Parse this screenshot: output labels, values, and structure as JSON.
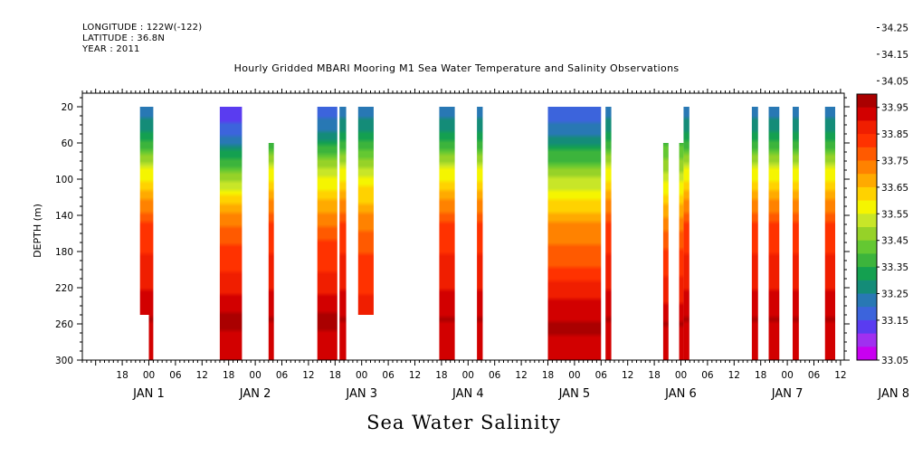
{
  "header": {
    "longitude": "LONGITUDE : 122W(-122)",
    "latitude": "LATITUDE : 36.8N",
    "year": "YEAR : 2011"
  },
  "chart_data": {
    "type": "heatmap",
    "title": "Hourly Gridded MBARI Mooring M1 Sea Water Temperature and Salinity Observations",
    "main_label": "Sea Water Salinity",
    "ylabel": "DEPTH (m)",
    "xlabel": "",
    "ylim": [
      300,
      0
    ],
    "y_ticks": [
      20,
      60,
      100,
      140,
      180,
      220,
      260,
      300
    ],
    "x_hour_ticks": [
      {
        "hour": 18,
        "label": "18"
      },
      {
        "hour": 24,
        "label": "00"
      },
      {
        "hour": 30,
        "label": "06"
      },
      {
        "hour": 36,
        "label": "12"
      },
      {
        "hour": 42,
        "label": "18"
      },
      {
        "hour": 48,
        "label": "00"
      },
      {
        "hour": 54,
        "label": "06"
      },
      {
        "hour": 60,
        "label": "12"
      },
      {
        "hour": 66,
        "label": "18"
      },
      {
        "hour": 72,
        "label": "00"
      },
      {
        "hour": 78,
        "label": "06"
      },
      {
        "hour": 84,
        "label": "12"
      },
      {
        "hour": 90,
        "label": "18"
      },
      {
        "hour": 96,
        "label": "00"
      },
      {
        "hour": 102,
        "label": "06"
      },
      {
        "hour": 108,
        "label": "12"
      },
      {
        "hour": 114,
        "label": "18"
      },
      {
        "hour": 120,
        "label": "00"
      },
      {
        "hour": 126,
        "label": "06"
      },
      {
        "hour": 132,
        "label": "12"
      },
      {
        "hour": 138,
        "label": "18"
      },
      {
        "hour": 144,
        "label": "00"
      },
      {
        "hour": 150,
        "label": "06"
      },
      {
        "hour": 156,
        "label": "12"
      },
      {
        "hour": 162,
        "label": "18"
      },
      {
        "hour": 168,
        "label": "00"
      },
      {
        "hour": 174,
        "label": "06"
      },
      {
        "hour": 180,
        "label": "12"
      }
    ],
    "x_date_labels": [
      {
        "hour": 24,
        "label": "JAN   1"
      },
      {
        "hour": 48,
        "label": "JAN   2"
      },
      {
        "hour": 72,
        "label": "JAN   3"
      },
      {
        "hour": 96,
        "label": "JAN   4"
      },
      {
        "hour": 120,
        "label": "JAN   5"
      },
      {
        "hour": 144,
        "label": "JAN   6"
      },
      {
        "hour": 168,
        "label": "JAN   7"
      },
      {
        "hour": 192,
        "label": "JAN   8"
      }
    ],
    "colorbar": {
      "levels": [
        "33.05",
        "33.15",
        "33.25",
        "33.35",
        "33.45",
        "33.55",
        "33.65",
        "33.75",
        "33.85",
        "33.95",
        "34.05",
        "34.15",
        "34.25"
      ],
      "colors": [
        "#c800f0",
        "#a030f0",
        "#5a3cf0",
        "#3c64dc",
        "#2878b4",
        "#148c78",
        "#14a050",
        "#3cb43c",
        "#64c832",
        "#96d228",
        "#c8e628",
        "#f5f500",
        "#ffd200",
        "#ffaa00",
        "#ff8200",
        "#ff5a00",
        "#ff3200",
        "#f01e00",
        "#d20000",
        "#aa0000"
      ]
    },
    "segments": [
      {
        "start": 22.0,
        "end": 25.0,
        "top": 20,
        "bottom": 250,
        "type": "A"
      },
      {
        "start": 24.0,
        "end": 25.0,
        "top": 250,
        "bottom": 300,
        "type": "A"
      },
      {
        "start": 40.0,
        "end": 45.0,
        "top": 20,
        "bottom": 300,
        "type": "B"
      },
      {
        "start": 51.0,
        "end": 52.2,
        "top": 60,
        "bottom": 300,
        "type": "A"
      },
      {
        "start": 62.0,
        "end": 66.5,
        "top": 20,
        "bottom": 300,
        "type": "C"
      },
      {
        "start": 67.0,
        "end": 68.5,
        "top": 20,
        "bottom": 300,
        "type": "A"
      },
      {
        "start": 71.2,
        "end": 74.7,
        "top": 20,
        "bottom": 250,
        "type": "D"
      },
      {
        "start": 89.5,
        "end": 93.0,
        "top": 20,
        "bottom": 300,
        "type": "A"
      },
      {
        "start": 98.0,
        "end": 99.3,
        "top": 20,
        "bottom": 300,
        "type": "A"
      },
      {
        "start": 114.0,
        "end": 126.0,
        "top": 20,
        "bottom": 300,
        "type": "E"
      },
      {
        "start": 127.0,
        "end": 128.3,
        "top": 20,
        "bottom": 300,
        "type": "A"
      },
      {
        "start": 140.0,
        "end": 141.2,
        "top": 60,
        "bottom": 300,
        "type": "F"
      },
      {
        "start": 143.6,
        "end": 144.6,
        "top": 60,
        "bottom": 300,
        "type": "F"
      },
      {
        "start": 144.6,
        "end": 145.9,
        "top": 20,
        "bottom": 300,
        "type": "A"
      },
      {
        "start": 160.0,
        "end": 161.4,
        "top": 20,
        "bottom": 300,
        "type": "A"
      },
      {
        "start": 163.8,
        "end": 166.2,
        "top": 20,
        "bottom": 300,
        "type": "A"
      },
      {
        "start": 169.2,
        "end": 170.6,
        "top": 20,
        "bottom": 300,
        "type": "A"
      },
      {
        "start": 176.5,
        "end": 178.8,
        "top": 20,
        "bottom": 300,
        "type": "A"
      },
      {
        "start": 185.0,
        "end": 186.3,
        "top": 20,
        "bottom": 300,
        "type": "A"
      }
    ],
    "profiles": {
      "A": [
        [
          20,
          0.2
        ],
        [
          40,
          0.27
        ],
        [
          60,
          0.36
        ],
        [
          75,
          0.45
        ],
        [
          90,
          0.55
        ],
        [
          105,
          0.62
        ],
        [
          120,
          0.68
        ],
        [
          135,
          0.74
        ],
        [
          150,
          0.8
        ],
        [
          175,
          0.84
        ],
        [
          210,
          0.88
        ],
        [
          230,
          0.91
        ],
        [
          255,
          0.95
        ],
        [
          275,
          0.92
        ],
        [
          300,
          0.9
        ]
      ],
      "B": [
        [
          20,
          0.12
        ],
        [
          50,
          0.17
        ],
        [
          70,
          0.3
        ],
        [
          95,
          0.45
        ],
        [
          115,
          0.58
        ],
        [
          130,
          0.66
        ],
        [
          150,
          0.74
        ],
        [
          175,
          0.8
        ],
        [
          210,
          0.86
        ],
        [
          230,
          0.91
        ],
        [
          255,
          0.97
        ],
        [
          275,
          0.93
        ],
        [
          300,
          0.9
        ]
      ],
      "C": [
        [
          20,
          0.15
        ],
        [
          40,
          0.22
        ],
        [
          60,
          0.32
        ],
        [
          80,
          0.45
        ],
        [
          100,
          0.55
        ],
        [
          125,
          0.65
        ],
        [
          145,
          0.73
        ],
        [
          170,
          0.8
        ],
        [
          210,
          0.86
        ],
        [
          230,
          0.91
        ],
        [
          255,
          0.97
        ],
        [
          275,
          0.93
        ],
        [
          300,
          0.9
        ]
      ],
      "D": [
        [
          20,
          0.2
        ],
        [
          50,
          0.3
        ],
        [
          80,
          0.45
        ],
        [
          110,
          0.6
        ],
        [
          140,
          0.7
        ],
        [
          170,
          0.78
        ],
        [
          210,
          0.84
        ],
        [
          250,
          0.86
        ]
      ],
      "E": [
        [
          20,
          0.15
        ],
        [
          45,
          0.22
        ],
        [
          70,
          0.35
        ],
        [
          100,
          0.5
        ],
        [
          125,
          0.6
        ],
        [
          150,
          0.7
        ],
        [
          175,
          0.76
        ],
        [
          205,
          0.82
        ],
        [
          225,
          0.88
        ],
        [
          245,
          0.93
        ],
        [
          265,
          0.96
        ],
        [
          285,
          0.93
        ],
        [
          300,
          0.9
        ]
      ],
      "F": [
        [
          60,
          0.38
        ],
        [
          80,
          0.46
        ],
        [
          100,
          0.53
        ],
        [
          130,
          0.65
        ],
        [
          160,
          0.76
        ],
        [
          200,
          0.84
        ],
        [
          240,
          0.9
        ],
        [
          260,
          0.95
        ],
        [
          300,
          0.9
        ]
      ]
    }
  }
}
